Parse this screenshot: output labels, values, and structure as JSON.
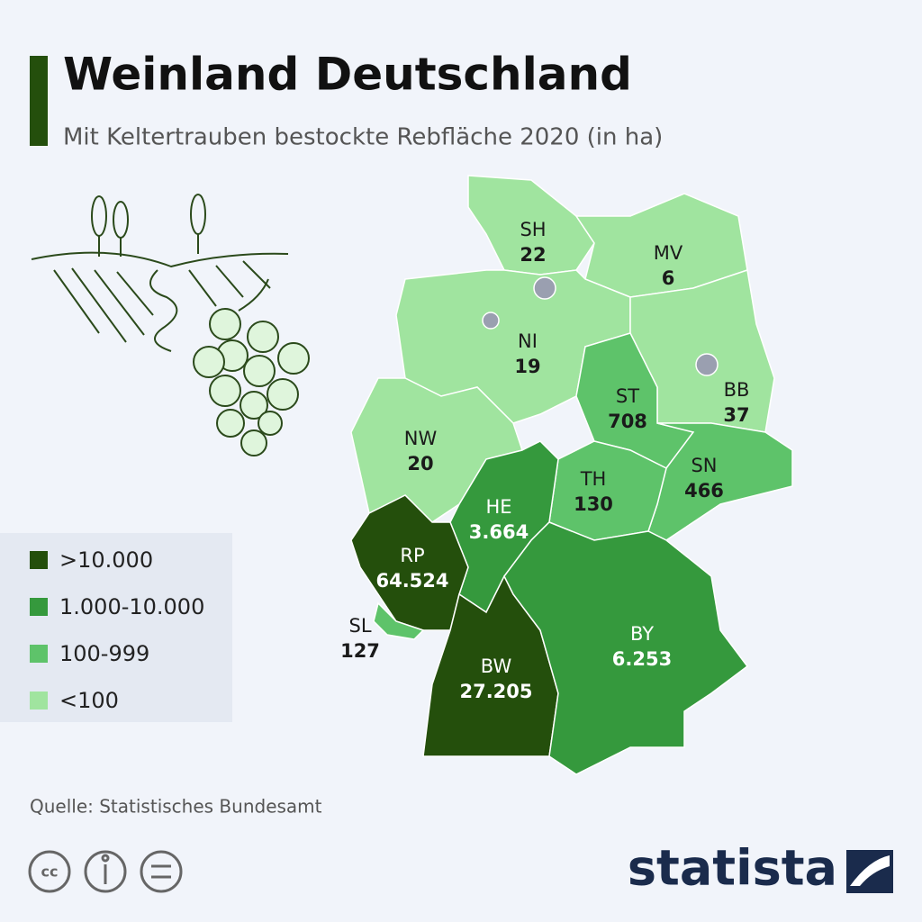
{
  "header": {
    "title": "Weinland Deutschland",
    "subtitle": "Mit Keltertrauben bestockte Rebfläche 2020 (in ha)"
  },
  "legend": [
    {
      "label": ">10.000",
      "color": "#244f0c"
    },
    {
      "label": "1.000-10.000",
      "color": "#35993d"
    },
    {
      "label": "100-999",
      "color": "#5ec36a"
    },
    {
      "label": "<100",
      "color": "#a0e49f"
    }
  ],
  "regions": [
    {
      "code": "SH",
      "value": "22",
      "color": "#a0e49f",
      "label_color": "#1a1a1a"
    },
    {
      "code": "MV",
      "value": "6",
      "color": "#a0e49f",
      "label_color": "#1a1a1a"
    },
    {
      "code": "NI",
      "value": "19",
      "color": "#a0e49f",
      "label_color": "#1a1a1a"
    },
    {
      "code": "BB",
      "value": "37",
      "color": "#a0e49f",
      "label_color": "#1a1a1a"
    },
    {
      "code": "ST",
      "value": "708",
      "color": "#5ec36a",
      "label_color": "#1a1a1a"
    },
    {
      "code": "NW",
      "value": "20",
      "color": "#a0e49f",
      "label_color": "#1a1a1a"
    },
    {
      "code": "SN",
      "value": "466",
      "color": "#5ec36a",
      "label_color": "#1a1a1a"
    },
    {
      "code": "TH",
      "value": "130",
      "color": "#5ec36a",
      "label_color": "#1a1a1a"
    },
    {
      "code": "HE",
      "value": "3.664",
      "color": "#35993d",
      "label_color": "#ffffff"
    },
    {
      "code": "RP",
      "value": "64.524",
      "color": "#244f0c",
      "label_color": "#ffffff"
    },
    {
      "code": "SL",
      "value": "127",
      "color": "#5ec36a",
      "label_color": "#1a1a1a"
    },
    {
      "code": "BW",
      "value": "27.205",
      "color": "#244f0c",
      "label_color": "#ffffff"
    },
    {
      "code": "BY",
      "value": "6.253",
      "color": "#35993d",
      "label_color": "#ffffff"
    }
  ],
  "footer": {
    "source": "Quelle: Statistisches Bundesamt",
    "brand": "statista"
  }
}
